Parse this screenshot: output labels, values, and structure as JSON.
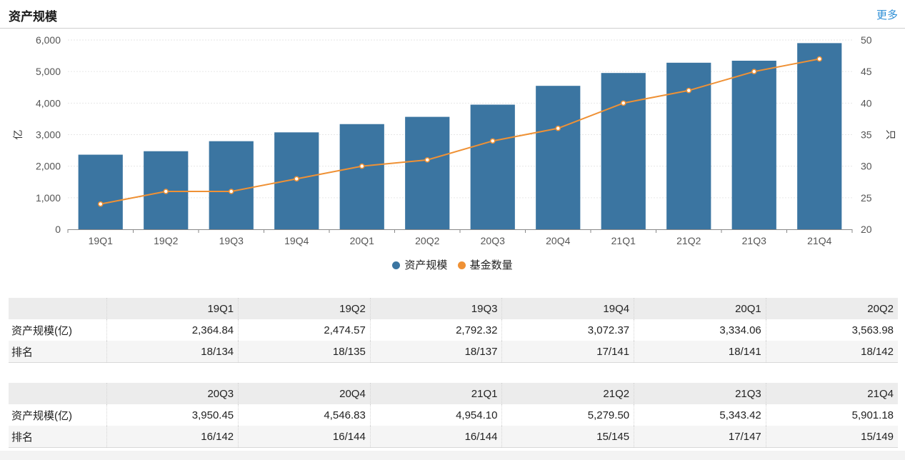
{
  "header": {
    "title": "资产规模",
    "more_label": "更多"
  },
  "chart_data": {
    "type": "bar",
    "categories": [
      "19Q1",
      "19Q2",
      "19Q3",
      "19Q4",
      "20Q1",
      "20Q2",
      "20Q3",
      "20Q4",
      "21Q1",
      "21Q2",
      "21Q3",
      "21Q4"
    ],
    "series": [
      {
        "name": "资产规模",
        "type": "bar",
        "axis": "left",
        "color": "#3b75a1",
        "values": [
          2364.84,
          2474.57,
          2792.32,
          3072.37,
          3334.06,
          3563.98,
          3950.45,
          4546.83,
          4954.1,
          5279.5,
          5343.42,
          5901.18
        ]
      },
      {
        "name": "基金数量",
        "type": "line",
        "axis": "right",
        "color": "#ef9135",
        "values": [
          24,
          26,
          26,
          28,
          30,
          31,
          34,
          36,
          40,
          42,
          45,
          47
        ]
      }
    ],
    "ylabel_left": "亿",
    "ylabel_right": "只",
    "ylim_left": [
      0,
      6000
    ],
    "yticks_left": [
      "0",
      "1,000",
      "2,000",
      "3,000",
      "4,000",
      "5,000",
      "6,000"
    ],
    "ylim_right": [
      20,
      50
    ],
    "yticks_right": [
      "20",
      "25",
      "30",
      "35",
      "40",
      "45",
      "50"
    ],
    "grid": true,
    "legend_position": "bottom-center"
  },
  "tables": [
    {
      "headers": [
        "19Q1",
        "19Q2",
        "19Q3",
        "19Q4",
        "20Q1",
        "20Q2"
      ],
      "rows": [
        {
          "label": "资产规模(亿)",
          "values": [
            "2,364.84",
            "2,474.57",
            "2,792.32",
            "3,072.37",
            "3,334.06",
            "3,563.98"
          ]
        },
        {
          "label": "排名",
          "values": [
            "18/134",
            "18/135",
            "18/137",
            "17/141",
            "18/141",
            "18/142"
          ]
        }
      ]
    },
    {
      "headers": [
        "20Q3",
        "20Q4",
        "21Q1",
        "21Q2",
        "21Q3",
        "21Q4"
      ],
      "rows": [
        {
          "label": "资产规模(亿)",
          "values": [
            "3,950.45",
            "4,546.83",
            "4,954.10",
            "5,279.50",
            "5,343.42",
            "5,901.18"
          ]
        },
        {
          "label": "排名",
          "values": [
            "16/142",
            "16/144",
            "16/144",
            "15/145",
            "17/147",
            "15/149"
          ]
        }
      ]
    }
  ]
}
